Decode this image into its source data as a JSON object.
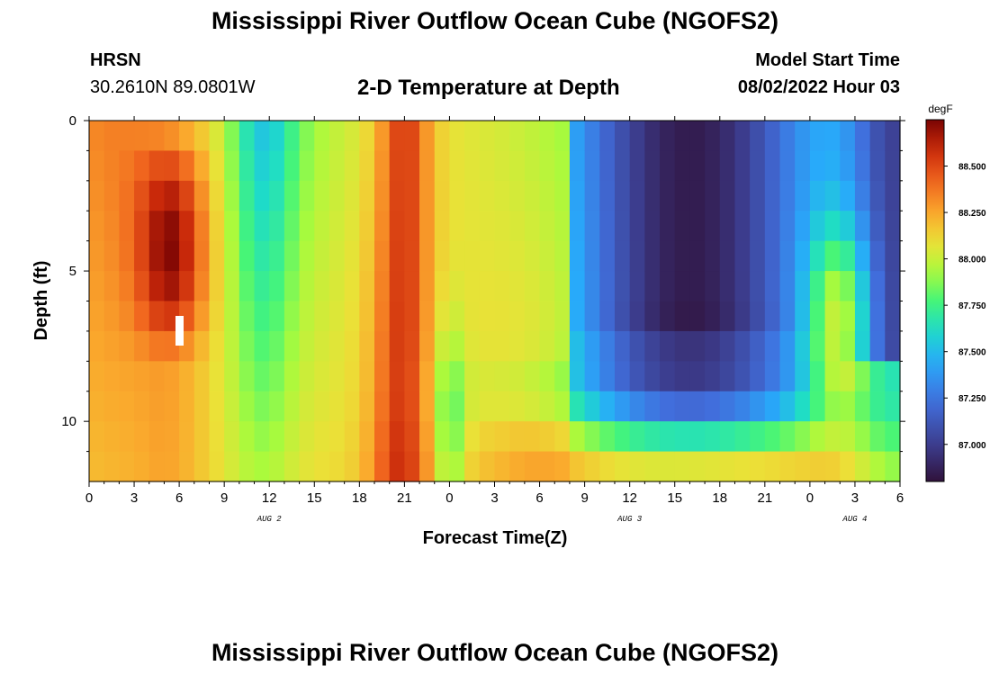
{
  "header": {
    "title": "Mississippi River Outflow Ocean Cube (NGOFS2)",
    "station_id": "HRSN",
    "station_coords": "30.2610N  89.0801W",
    "plot_title": "2-D Temperature at Depth",
    "model_start_label": "Model Start Time",
    "model_start_value": "08/02/2022 Hour 03"
  },
  "footer": {
    "title": "Mississippi River Outflow Ocean Cube (NGOFS2)"
  },
  "chart_data": {
    "type": "heatmap",
    "xlabel": "Forecast Time(Z)",
    "ylabel": "Depth (ft)",
    "x_tick_labels": [
      "0",
      "3",
      "6",
      "9",
      "12",
      "15",
      "18",
      "21",
      "0",
      "3",
      "6",
      "9",
      "12",
      "15",
      "18",
      "21",
      "0",
      "3",
      "6"
    ],
    "x_range_hours": [
      0,
      54
    ],
    "date_labels": [
      {
        "text": "AUG 2",
        "hour": 12
      },
      {
        "text": "AUG 3",
        "hour": 36
      },
      {
        "text": "AUG 4",
        "hour": 51
      }
    ],
    "y_tick_labels": [
      "0",
      "5",
      "10"
    ],
    "y_range_ft": [
      0,
      12
    ],
    "colorbar": {
      "unit": "degF",
      "range": [
        86.8,
        88.75
      ],
      "tick_labels": [
        "87.000",
        "87.250",
        "87.500",
        "87.750",
        "88.000",
        "88.250",
        "88.500"
      ],
      "tick_values": [
        87.0,
        87.25,
        87.5,
        87.75,
        88.0,
        88.25,
        88.5
      ]
    },
    "value_range_degF": [
      86.8,
      88.75
    ],
    "description": "Temperature (degF) as a function of forecast hour (0-54) and depth (0-12 ft); values reconstructed approximately from the color field"
  }
}
